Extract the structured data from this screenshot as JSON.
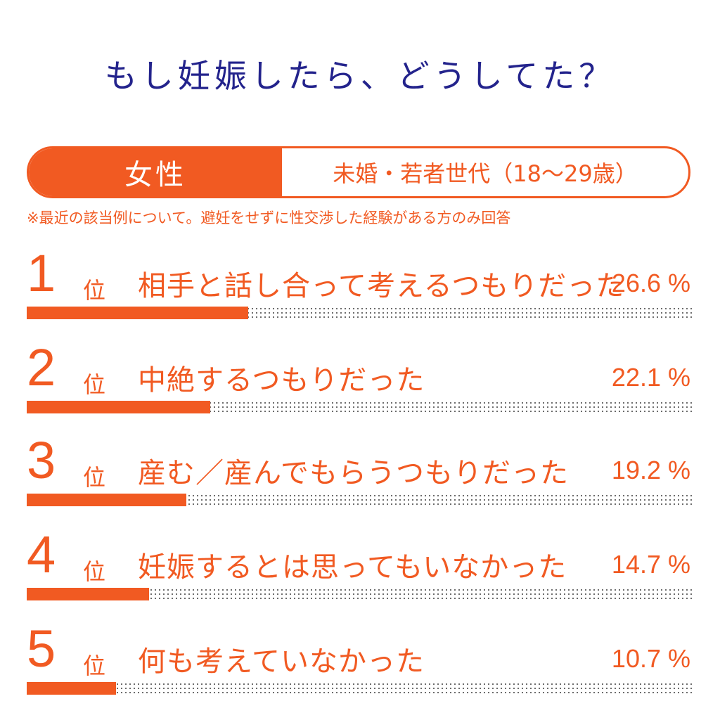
{
  "title": "もし妊娠したら、どうしてた？",
  "segment": {
    "gender": "女性",
    "group": "未婚・若者世代（18～29歳）"
  },
  "note": "※最近の該当例について。避妊をせずに性交渉した経験がある方のみ回答",
  "rank_suffix": "位",
  "colors": {
    "accent": "#f15a22",
    "title": "#23238c"
  },
  "chart_data": {
    "type": "bar",
    "title": "もし妊娠したら、どうしてた？",
    "xlabel": "",
    "ylabel": "",
    "xlim": [
      0,
      80
    ],
    "items": [
      {
        "rank": "1",
        "label": "相手と話し合って考えるつもりだった",
        "value": 26.6,
        "value_label": "26.6 %"
      },
      {
        "rank": "2",
        "label": "中絶するつもりだった",
        "value": 22.1,
        "value_label": "22.1 %"
      },
      {
        "rank": "3",
        "label": "産む／産んでもらうつもりだった",
        "value": 19.2,
        "value_label": "19.2 %"
      },
      {
        "rank": "4",
        "label": "妊娠するとは思ってもいなかった",
        "value": 14.7,
        "value_label": "14.7 %"
      },
      {
        "rank": "5",
        "label": "何も考えていなかった",
        "value": 10.7,
        "value_label": "10.7 %"
      }
    ]
  }
}
